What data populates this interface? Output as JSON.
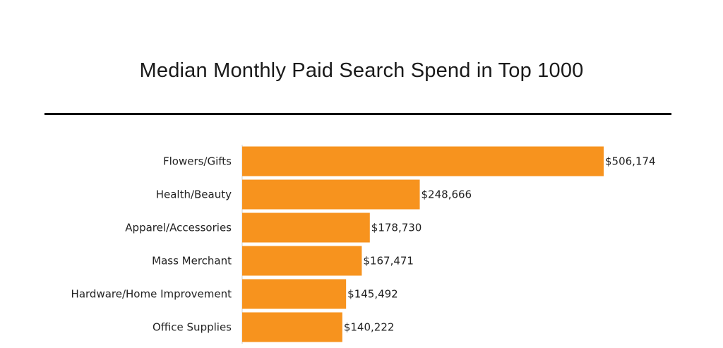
{
  "chart_data": {
    "type": "bar",
    "orientation": "horizontal",
    "title": "Median Monthly Paid Search Spend in Top 1000",
    "categories": [
      "Flowers/Gifts",
      "Health/Beauty",
      "Apparel/Accessories",
      "Mass Merchant",
      "Hardware/Home Improvement",
      "Office Supplies"
    ],
    "values": [
      506174,
      248666,
      178730,
      167471,
      145492,
      140222
    ],
    "value_labels": [
      "$506,174",
      "$248,666",
      "$178,730",
      "$167,471",
      "$145,492",
      "$140,222"
    ],
    "xlim": [
      0,
      506174
    ],
    "grid": false,
    "legend": "none",
    "bar_color": "#f7931e"
  }
}
